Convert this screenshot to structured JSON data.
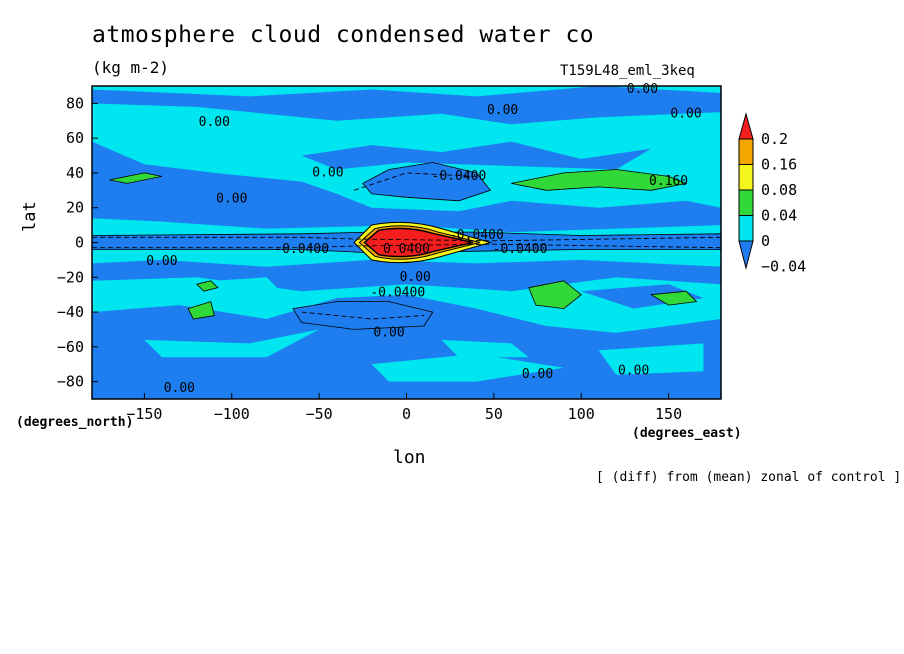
{
  "chart_data": {
    "type": "contour",
    "title": "atmosphere cloud condensed water co",
    "units": "(kg m-2)",
    "run_label": "T159L48_eml_3keq",
    "note": "[ (diff) from (mean) zonal of control ]",
    "xlabel": "lon",
    "ylabel": "lat",
    "x_unit": "(degrees_east)",
    "y_unit": "(degrees_north)",
    "xlim": [
      -180,
      180
    ],
    "ylim": [
      -90,
      90
    ],
    "x_ticks": [
      -150,
      -100,
      -50,
      0,
      50,
      100,
      150
    ],
    "y_ticks": [
      80,
      60,
      40,
      20,
      0,
      -20,
      -40,
      -60,
      -80
    ],
    "x_tick_labels": [
      "−150",
      "−100",
      "−50",
      "0",
      "50",
      "100",
      "150"
    ],
    "y_tick_labels": [
      "80",
      "60",
      "40",
      "20",
      "0",
      "−20",
      "−40",
      "−60",
      "−80"
    ],
    "colorbar": {
      "levels": [
        -0.04,
        0,
        0.04,
        0.08,
        0.16,
        0.2
      ],
      "labels": [
        "−0.04",
        "0",
        "0.04",
        "0.08",
        "0.16",
        "0.2"
      ],
      "colors": [
        "#1e7ef0",
        "#00e6f0",
        "#30d838",
        "#f5f51e",
        "#f5a500",
        "#f51e1e"
      ],
      "below_color": "#1e7ef0",
      "above_color": "#f51e1e"
    },
    "regions": [
      {
        "name": "southern-mid-latitude-low",
        "level": "<-0.04",
        "color": "#1e7ef0",
        "lon": [
          -65,
          20
        ],
        "lat": [
          -50,
          -32
        ]
      },
      {
        "name": "northern-mid-latitude-low",
        "level": "<-0.04",
        "color": "#1e7ef0",
        "lon": [
          -25,
          45
        ],
        "lat": [
          25,
          45
        ]
      },
      {
        "name": "equatorial-band",
        "level": "-0.04..0",
        "color": "#1e7ef0",
        "lon": [
          -180,
          180
        ],
        "lat": [
          -6,
          6
        ]
      },
      {
        "name": "equatorial-max",
        "level": ">0.2",
        "color": "#f51e1e",
        "lon": [
          -22,
          25
        ],
        "lat": [
          -8,
          8
        ]
      },
      {
        "name": "north-pacific-green",
        "level": "0.04..0.08",
        "color": "#30d838",
        "lon": [
          60,
          160
        ],
        "lat": [
          30,
          42
        ]
      },
      {
        "name": "south-indian-green",
        "level": "0.04..0.08",
        "color": "#30d838",
        "lon": [
          70,
          100
        ],
        "lat": [
          -40,
          -25
        ]
      }
    ],
    "contour_labels": [
      "0.00",
      "0.00",
      "0.00",
      "0.00",
      "0.00",
      "0.00",
      "0.00",
      "0.00",
      "0.00",
      "0.00",
      "0.00",
      "0.00",
      "-0.0400",
      "-0.0400",
      "-0.0400",
      "-0.0400",
      "-0.0400",
      "0.0400",
      "0.160"
    ]
  }
}
